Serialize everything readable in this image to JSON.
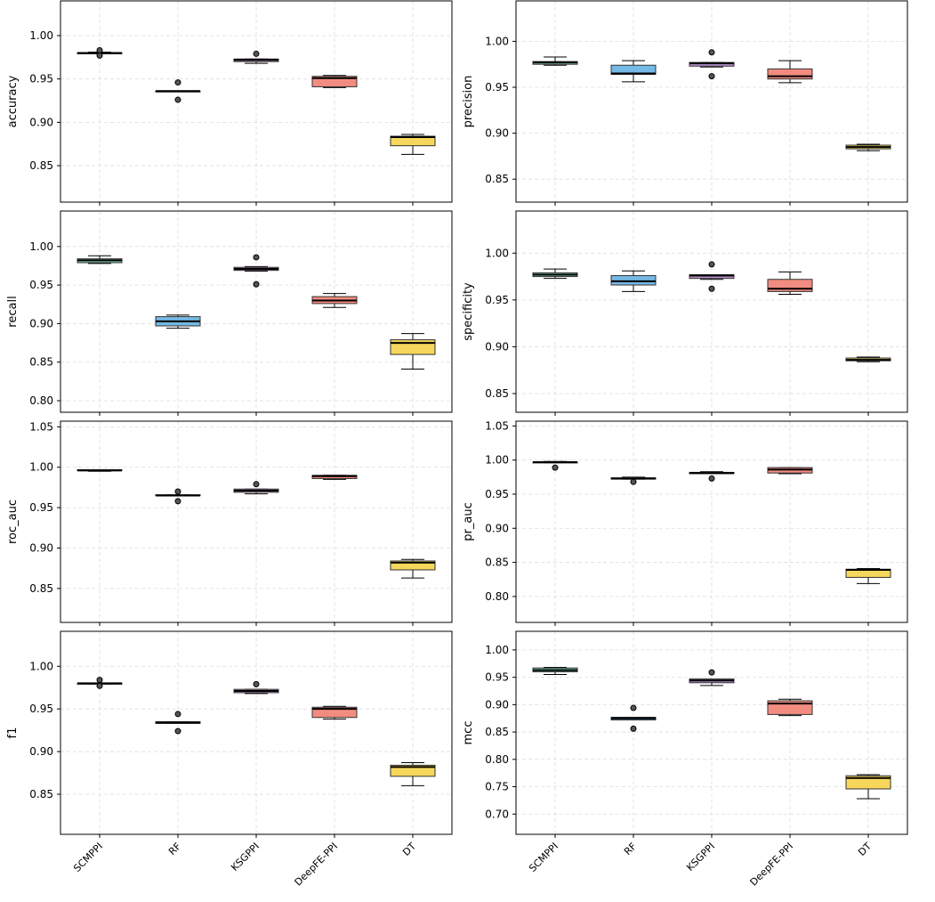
{
  "chart_data": {
    "type": "box",
    "categories": [
      "SCMPPI",
      "RF",
      "KSGPPI",
      "DeepFE-PPI",
      "DT"
    ],
    "colors": [
      "#66c2a5",
      "#5dade2",
      "#b07cc6",
      "#f1786a",
      "#f4d03f"
    ],
    "grid": true,
    "panels": [
      {
        "metric": "accuracy",
        "ylim": [
          0.808,
          1.04
        ],
        "yticks": [
          "0.85",
          "0.90",
          "0.95",
          "1.00"
        ],
        "ytick_values": [
          0.85,
          0.9,
          0.95,
          1.0
        ],
        "boxes": [
          {
            "whislo": 0.979,
            "q1": 0.979,
            "med": 0.98,
            "q3": 0.98,
            "whishi": 0.981,
            "fliers": [
              0.983,
              0.977
            ]
          },
          {
            "whislo": 0.936,
            "q1": 0.936,
            "med": 0.936,
            "q3": 0.936,
            "whishi": 0.936,
            "fliers": [
              0.946,
              0.926
            ]
          },
          {
            "whislo": 0.968,
            "q1": 0.97,
            "med": 0.972,
            "q3": 0.973,
            "whishi": 0.973,
            "fliers": [
              0.979
            ]
          },
          {
            "whislo": 0.94,
            "q1": 0.941,
            "med": 0.951,
            "q3": 0.953,
            "whishi": 0.954,
            "fliers": []
          },
          {
            "whislo": 0.863,
            "q1": 0.873,
            "med": 0.883,
            "q3": 0.884,
            "whishi": 0.886,
            "fliers": []
          }
        ]
      },
      {
        "metric": "precision",
        "ylim": [
          0.825,
          1.044
        ],
        "yticks": [
          "0.85",
          "0.90",
          "0.95",
          "1.00"
        ],
        "ytick_values": [
          0.85,
          0.9,
          0.95,
          1.0
        ],
        "boxes": [
          {
            "whislo": 0.974,
            "q1": 0.975,
            "med": 0.977,
            "q3": 0.978,
            "whishi": 0.983,
            "fliers": []
          },
          {
            "whislo": 0.956,
            "q1": 0.964,
            "med": 0.965,
            "q3": 0.974,
            "whishi": 0.979,
            "fliers": []
          },
          {
            "whislo": 0.972,
            "q1": 0.973,
            "med": 0.976,
            "q3": 0.977,
            "whishi": 0.977,
            "fliers": [
              0.988,
              0.962
            ]
          },
          {
            "whislo": 0.955,
            "q1": 0.959,
            "med": 0.962,
            "q3": 0.97,
            "whishi": 0.979,
            "fliers": []
          },
          {
            "whislo": 0.881,
            "q1": 0.883,
            "med": 0.885,
            "q3": 0.887,
            "whishi": 0.888,
            "fliers": []
          }
        ]
      },
      {
        "metric": "recall",
        "ylim": [
          0.785,
          1.046
        ],
        "yticks": [
          "0.80",
          "0.85",
          "0.90",
          "0.95",
          "1.00"
        ],
        "ytick_values": [
          0.8,
          0.85,
          0.9,
          0.95,
          1.0
        ],
        "boxes": [
          {
            "whislo": 0.978,
            "q1": 0.979,
            "med": 0.982,
            "q3": 0.984,
            "whishi": 0.988,
            "fliers": []
          },
          {
            "whislo": 0.894,
            "q1": 0.897,
            "med": 0.903,
            "q3": 0.909,
            "whishi": 0.911,
            "fliers": []
          },
          {
            "whislo": 0.968,
            "q1": 0.969,
            "med": 0.971,
            "q3": 0.973,
            "whishi": 0.974,
            "fliers": [
              0.986,
              0.951
            ]
          },
          {
            "whislo": 0.921,
            "q1": 0.926,
            "med": 0.93,
            "q3": 0.935,
            "whishi": 0.939,
            "fliers": []
          },
          {
            "whislo": 0.841,
            "q1": 0.86,
            "med": 0.875,
            "q3": 0.879,
            "whishi": 0.887,
            "fliers": []
          }
        ]
      },
      {
        "metric": "specificity",
        "ylim": [
          0.83,
          1.045
        ],
        "yticks": [
          "0.85",
          "0.90",
          "0.95",
          "1.00"
        ],
        "ytick_values": [
          0.85,
          0.9,
          0.95,
          1.0
        ],
        "boxes": [
          {
            "whislo": 0.973,
            "q1": 0.975,
            "med": 0.977,
            "q3": 0.979,
            "whishi": 0.983,
            "fliers": []
          },
          {
            "whislo": 0.959,
            "q1": 0.966,
            "med": 0.97,
            "q3": 0.976,
            "whishi": 0.981,
            "fliers": []
          },
          {
            "whislo": 0.972,
            "q1": 0.973,
            "med": 0.976,
            "q3": 0.977,
            "whishi": 0.977,
            "fliers": [
              0.988,
              0.962
            ]
          },
          {
            "whislo": 0.956,
            "q1": 0.959,
            "med": 0.962,
            "q3": 0.972,
            "whishi": 0.98,
            "fliers": []
          },
          {
            "whislo": 0.884,
            "q1": 0.885,
            "med": 0.886,
            "q3": 0.888,
            "whishi": 0.889,
            "fliers": []
          }
        ]
      },
      {
        "metric": "roc_auc",
        "ylim": [
          0.808,
          1.057
        ],
        "yticks": [
          "0.85",
          "0.90",
          "0.95",
          "1.00",
          "1.05"
        ],
        "ytick_values": [
          0.85,
          0.9,
          0.95,
          1.0,
          1.05
        ],
        "boxes": [
          {
            "whislo": 0.995,
            "q1": 0.996,
            "med": 0.996,
            "q3": 0.997,
            "whishi": 0.997,
            "fliers": []
          },
          {
            "whislo": 0.965,
            "q1": 0.965,
            "med": 0.965,
            "q3": 0.966,
            "whishi": 0.966,
            "fliers": [
              0.97,
              0.958
            ]
          },
          {
            "whislo": 0.967,
            "q1": 0.969,
            "med": 0.971,
            "q3": 0.973,
            "whishi": 0.973,
            "fliers": [
              0.979
            ]
          },
          {
            "whislo": 0.985,
            "q1": 0.986,
            "med": 0.989,
            "q3": 0.99,
            "whishi": 0.99,
            "fliers": []
          },
          {
            "whislo": 0.863,
            "q1": 0.873,
            "med": 0.882,
            "q3": 0.884,
            "whishi": 0.886,
            "fliers": []
          }
        ]
      },
      {
        "metric": "pr_auc",
        "ylim": [
          0.762,
          1.057
        ],
        "yticks": [
          "0.80",
          "0.85",
          "0.90",
          "0.95",
          "1.00",
          "1.05"
        ],
        "ytick_values": [
          0.8,
          0.85,
          0.9,
          0.95,
          1.0,
          1.05
        ],
        "boxes": [
          {
            "whislo": 0.996,
            "q1": 0.996,
            "med": 0.997,
            "q3": 0.997,
            "whishi": 0.998,
            "fliers": [
              0.989
            ]
          },
          {
            "whislo": 0.972,
            "q1": 0.972,
            "med": 0.973,
            "q3": 0.974,
            "whishi": 0.975,
            "fliers": [
              0.968
            ]
          },
          {
            "whislo": 0.98,
            "q1": 0.98,
            "med": 0.981,
            "q3": 0.982,
            "whishi": 0.983,
            "fliers": [
              0.973
            ]
          },
          {
            "whislo": 0.98,
            "q1": 0.981,
            "med": 0.986,
            "q3": 0.989,
            "whishi": 0.989,
            "fliers": []
          },
          {
            "whislo": 0.819,
            "q1": 0.828,
            "med": 0.839,
            "q3": 0.84,
            "whishi": 0.841,
            "fliers": []
          }
        ]
      },
      {
        "metric": "f1",
        "ylim": [
          0.803,
          1.041
        ],
        "yticks": [
          "0.85",
          "0.90",
          "0.95",
          "1.00"
        ],
        "ytick_values": [
          0.85,
          0.9,
          0.95,
          1.0
        ],
        "boxes": [
          {
            "whislo": 0.979,
            "q1": 0.979,
            "med": 0.98,
            "q3": 0.98,
            "whishi": 0.98,
            "fliers": [
              0.984,
              0.977
            ]
          },
          {
            "whislo": 0.933,
            "q1": 0.933,
            "med": 0.934,
            "q3": 0.935,
            "whishi": 0.935,
            "fliers": [
              0.944,
              0.924
            ]
          },
          {
            "whislo": 0.968,
            "q1": 0.969,
            "med": 0.971,
            "q3": 0.973,
            "whishi": 0.973,
            "fliers": [
              0.979
            ]
          },
          {
            "whislo": 0.938,
            "q1": 0.94,
            "med": 0.95,
            "q3": 0.952,
            "whishi": 0.953,
            "fliers": []
          },
          {
            "whislo": 0.86,
            "q1": 0.871,
            "med": 0.882,
            "q3": 0.884,
            "whishi": 0.887,
            "fliers": []
          }
        ]
      },
      {
        "metric": "mcc",
        "ylim": [
          0.663,
          1.034
        ],
        "yticks": [
          "0.70",
          "0.75",
          "0.80",
          "0.85",
          "0.90",
          "0.95",
          "1.00"
        ],
        "ytick_values": [
          0.7,
          0.75,
          0.8,
          0.85,
          0.9,
          0.95,
          1.0
        ],
        "boxes": [
          {
            "whislo": 0.955,
            "q1": 0.96,
            "med": 0.963,
            "q3": 0.967,
            "whishi": 0.968,
            "fliers": []
          },
          {
            "whislo": 0.872,
            "q1": 0.872,
            "med": 0.875,
            "q3": 0.877,
            "whishi": 0.877,
            "fliers": [
              0.894,
              0.856
            ]
          },
          {
            "whislo": 0.935,
            "q1": 0.94,
            "med": 0.944,
            "q3": 0.947,
            "whishi": 0.947,
            "fliers": [
              0.959
            ]
          },
          {
            "whislo": 0.88,
            "q1": 0.882,
            "med": 0.902,
            "q3": 0.907,
            "whishi": 0.91,
            "fliers": []
          },
          {
            "whislo": 0.728,
            "q1": 0.746,
            "med": 0.766,
            "q3": 0.77,
            "whishi": 0.772,
            "fliers": []
          }
        ]
      }
    ]
  }
}
